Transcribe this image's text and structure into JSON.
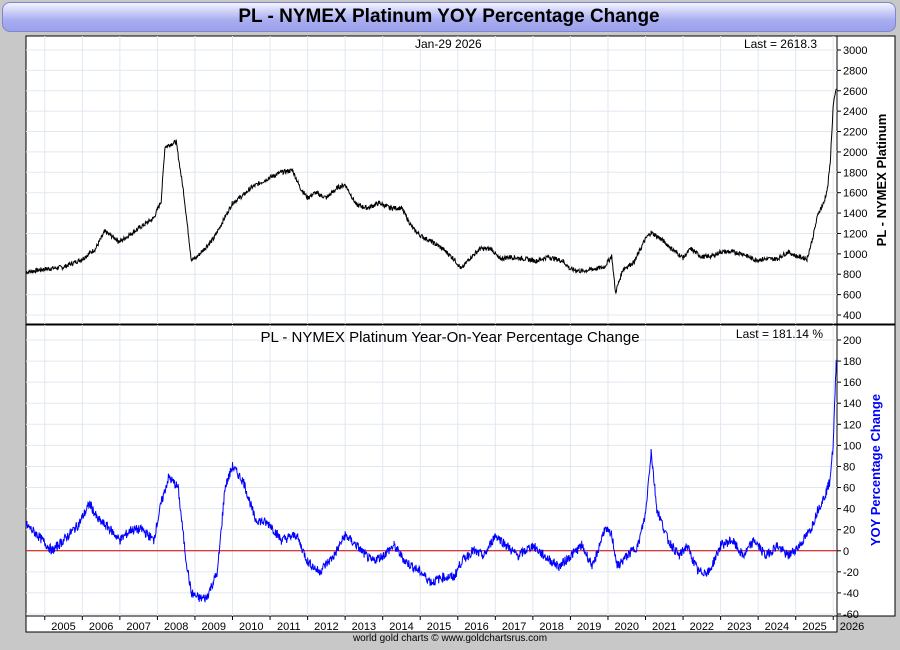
{
  "title": "PL  -  NYMEX Platinum YOY Percentage Change",
  "footer": "world gold charts © www.goldchartsrus.com",
  "chart_data": [
    {
      "type": "line",
      "panel": "price",
      "date_label": "Jan-29  2026",
      "last_label": "Last = 2618.3",
      "ylabel": "PL  -  NYMEX Platinum",
      "ylim": [
        400,
        3000
      ],
      "yticks": [
        "3000",
        "2800",
        "2600",
        "2400",
        "2200",
        "2000",
        "1800",
        "1600",
        "1400",
        "1200",
        "1000",
        "800",
        "600",
        "400"
      ],
      "color": "#000000",
      "series": [
        {
          "x": [
            2004.5,
            2005.0,
            2005.5,
            2006.0,
            2006.35,
            2006.6,
            2007.0,
            2007.5,
            2007.9,
            2008.1,
            2008.2,
            2008.5,
            2008.7,
            2008.9,
            2009.0,
            2009.5,
            2010.0,
            2010.3,
            2010.5,
            2011.0,
            2011.3,
            2011.6,
            2011.8,
            2012.0,
            2012.2,
            2012.5,
            2012.8,
            2013.0,
            2013.3,
            2013.6,
            2013.9,
            2014.2,
            2014.5,
            2014.8,
            2015.0,
            2015.3,
            2015.6,
            2015.9,
            2016.1,
            2016.3,
            2016.6,
            2016.9,
            2017.1,
            2017.4,
            2017.8,
            2018.1,
            2018.4,
            2018.8,
            2019.0,
            2019.3,
            2019.6,
            2019.9,
            2020.1,
            2020.2,
            2020.4,
            2020.7,
            2021.0,
            2021.15,
            2021.4,
            2021.7,
            2022.0,
            2022.2,
            2022.5,
            2022.8,
            2023.0,
            2023.3,
            2023.6,
            2023.9,
            2024.2,
            2024.5,
            2024.8,
            2025.0,
            2025.3,
            2025.45,
            2025.6,
            2025.75,
            2025.85,
            2025.92,
            2026.0,
            2026.08
          ],
          "y": [
            820,
            850,
            870,
            950,
            1050,
            1220,
            1120,
            1250,
            1350,
            1520,
            2050,
            2100,
            1600,
            950,
            950,
            1150,
            1500,
            1580,
            1650,
            1750,
            1800,
            1820,
            1650,
            1550,
            1600,
            1550,
            1650,
            1680,
            1480,
            1450,
            1500,
            1450,
            1450,
            1250,
            1180,
            1120,
            1050,
            950,
            850,
            950,
            1050,
            1050,
            950,
            970,
            950,
            930,
            970,
            930,
            850,
            830,
            850,
            870,
            980,
            620,
            850,
            920,
            1150,
            1210,
            1150,
            1050,
            960,
            1050,
            970,
            980,
            1020,
            1020,
            1000,
            940,
            950,
            950,
            1020,
            980,
            950,
            1150,
            1400,
            1500,
            1650,
            1900,
            2450,
            2618.3
          ]
        }
      ]
    },
    {
      "type": "line",
      "panel": "yoy",
      "title": "PL  -  NYMEX Platinum Year-On-Year Percentage Change",
      "last_label": "Last = 181.14 %",
      "ylabel": "YOY Percentage Change",
      "ylim": [
        -60,
        200
      ],
      "yticks": [
        "200",
        "180",
        "160",
        "140",
        "120",
        "100",
        "80",
        "60",
        "40",
        "20",
        "0",
        "-20",
        "-40",
        "-60"
      ],
      "color": "#0000ff",
      "zero_line_color": "#cc0000",
      "xticks": [
        "2005",
        "2006",
        "2007",
        "2008",
        "2009",
        "2010",
        "2011",
        "2012",
        "2013",
        "2014",
        "2015",
        "2016",
        "2017",
        "2018",
        "2019",
        "2020",
        "2021",
        "2022",
        "2023",
        "2024",
        "2025",
        "2026"
      ],
      "series": [
        {
          "x": [
            2004.5,
            2004.8,
            2005.2,
            2005.5,
            2005.9,
            2006.2,
            2006.4,
            2006.7,
            2007.0,
            2007.3,
            2007.6,
            2007.9,
            2008.1,
            2008.3,
            2008.55,
            2008.75,
            2008.9,
            2009.1,
            2009.3,
            2009.6,
            2009.8,
            2010.0,
            2010.3,
            2010.6,
            2011.0,
            2011.3,
            2011.7,
            2012.0,
            2012.3,
            2012.7,
            2013.0,
            2013.3,
            2013.7,
            2014.0,
            2014.3,
            2014.6,
            2015.0,
            2015.3,
            2015.6,
            2015.9,
            2016.1,
            2016.4,
            2016.7,
            2017.0,
            2017.3,
            2017.6,
            2018.0,
            2018.3,
            2018.7,
            2019.0,
            2019.3,
            2019.6,
            2019.9,
            2020.1,
            2020.25,
            2020.5,
            2020.8,
            2021.0,
            2021.15,
            2021.3,
            2021.6,
            2021.9,
            2022.1,
            2022.4,
            2022.7,
            2023.0,
            2023.3,
            2023.6,
            2023.9,
            2024.2,
            2024.5,
            2024.8,
            2025.1,
            2025.4,
            2025.6,
            2025.75,
            2025.9,
            2026.0,
            2026.08
          ],
          "y": [
            25,
            15,
            0,
            10,
            25,
            45,
            30,
            22,
            10,
            20,
            20,
            10,
            45,
            70,
            60,
            -5,
            -40,
            -45,
            -45,
            -20,
            60,
            80,
            65,
            30,
            25,
            10,
            15,
            -10,
            -20,
            -5,
            15,
            5,
            -10,
            -5,
            5,
            -10,
            -20,
            -30,
            -25,
            -25,
            -10,
            0,
            -5,
            15,
            5,
            -5,
            5,
            -5,
            -15,
            -5,
            5,
            -15,
            20,
            15,
            -15,
            -5,
            5,
            35,
            95,
            40,
            10,
            -5,
            5,
            -20,
            -20,
            5,
            10,
            -5,
            10,
            -5,
            5,
            -5,
            5,
            20,
            40,
            50,
            65,
            100,
            181.14
          ]
        }
      ]
    }
  ]
}
